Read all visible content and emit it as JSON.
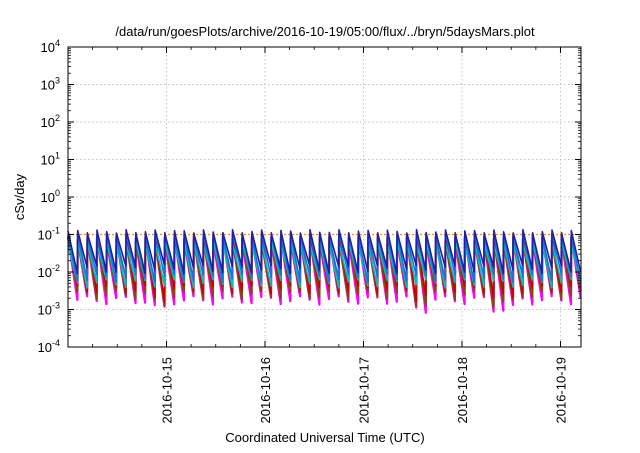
{
  "chart_data": {
    "type": "line",
    "title": "/data/run/goesPlots/archive/2016-10-19/05:00/flux/../bryn/5daysMars.plot",
    "xlabel": "Coordinated Universal Time (UTC)",
    "ylabel": "cSv/day",
    "yscale": "log",
    "ylim": [
      0.0001,
      10000
    ],
    "xlim": [
      "2016-10-14T00:00",
      "2016-10-19T05:00"
    ],
    "x_ticks": [
      "2016-10-15",
      "2016-10-16",
      "2016-10-17",
      "2016-10-18",
      "2016-10-19"
    ],
    "y_ticks": [
      {
        "base": "10",
        "exp": "-4"
      },
      {
        "base": "10",
        "exp": "-3"
      },
      {
        "base": "10",
        "exp": "-2"
      },
      {
        "base": "10",
        "exp": "-1"
      },
      {
        "base": "10",
        "exp": "0"
      },
      {
        "base": "10",
        "exp": "1"
      },
      {
        "base": "10",
        "exp": "2"
      },
      {
        "base": "10",
        "exp": "3"
      },
      {
        "base": "10",
        "exp": "4"
      }
    ],
    "grid": true,
    "reference_line": {
      "y": 0.1,
      "color": "#ff8c00",
      "style": "dotted"
    },
    "sawtooth": {
      "teeth": 53,
      "start": "2016-10-14T00:00",
      "end": "2016-10-19T05:00"
    },
    "series": [
      {
        "color": "#ff00ff",
        "peak": 0.075,
        "trough": 0.0018
      },
      {
        "color": "#8b4513",
        "peak": 0.08,
        "trough": 0.0025
      },
      {
        "color": "#cc0000",
        "peak": 0.1,
        "trough": 0.0035
      },
      {
        "color": "#00c0c0",
        "peak": 0.06,
        "trough": 0.005
      },
      {
        "color": "#1e6ee8",
        "peak": 0.1,
        "trough": 0.007
      },
      {
        "color": "#2020a0",
        "peak": 0.12,
        "trough": 0.012
      }
    ]
  }
}
